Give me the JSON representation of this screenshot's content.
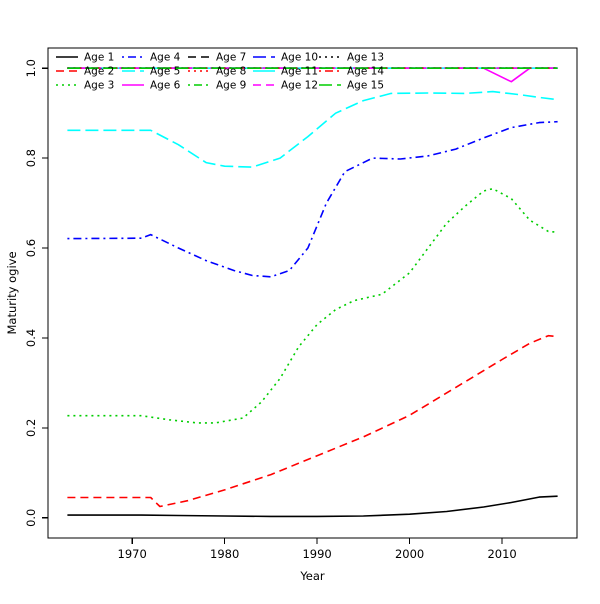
{
  "figure": {
    "background": "#ffffff",
    "title": ""
  },
  "chart_data": {
    "type": "line",
    "title": "",
    "xlabel": "Year",
    "ylabel": "Maturity ogive",
    "xlim": [
      1960.9,
      2018.1
    ],
    "ylim": [
      -0.045,
      1.045
    ],
    "x_ticks": [
      1970,
      1980,
      1990,
      2000,
      2010
    ],
    "y_ticks": [
      "0.0",
      "0.2",
      "0.4",
      "0.6",
      "0.8",
      "1.0"
    ],
    "grid": false,
    "legend_position": "top-inside",
    "legend_columns": 5,
    "legend_box": false,
    "series": [
      {
        "name": "Age 1",
        "color": "#000000",
        "linetype": "solid",
        "points": [
          [
            1963,
            0.006
          ],
          [
            1971,
            0.006
          ],
          [
            1975,
            0.005
          ],
          [
            1980,
            0.004
          ],
          [
            1985,
            0.003
          ],
          [
            1990,
            0.003
          ],
          [
            1995,
            0.004
          ],
          [
            2000,
            0.008
          ],
          [
            2004,
            0.014
          ],
          [
            2008,
            0.024
          ],
          [
            2011,
            0.034
          ],
          [
            2014,
            0.046
          ],
          [
            2016,
            0.048
          ]
        ]
      },
      {
        "name": "Age 2",
        "color": "#FF0000",
        "linetype": "dashed",
        "points": [
          [
            1963,
            0.045
          ],
          [
            1972,
            0.045
          ],
          [
            1973,
            0.025
          ],
          [
            1976,
            0.038
          ],
          [
            1980,
            0.062
          ],
          [
            1985,
            0.096
          ],
          [
            1990,
            0.138
          ],
          [
            1995,
            0.18
          ],
          [
            2000,
            0.228
          ],
          [
            2005,
            0.29
          ],
          [
            2010,
            0.352
          ],
          [
            2013,
            0.388
          ],
          [
            2015,
            0.405
          ],
          [
            2016,
            0.403
          ]
        ]
      },
      {
        "name": "Age 3",
        "color": "#00CD00",
        "linetype": "dotted",
        "points": [
          [
            1963,
            0.227
          ],
          [
            1971,
            0.227
          ],
          [
            1974,
            0.218
          ],
          [
            1977,
            0.211
          ],
          [
            1979,
            0.211
          ],
          [
            1982,
            0.222
          ],
          [
            1984,
            0.258
          ],
          [
            1986,
            0.31
          ],
          [
            1988,
            0.38
          ],
          [
            1990,
            0.43
          ],
          [
            1992,
            0.463
          ],
          [
            1994,
            0.483
          ],
          [
            1997,
            0.497
          ],
          [
            2000,
            0.545
          ],
          [
            2002,
            0.6
          ],
          [
            2004,
            0.655
          ],
          [
            2006,
            0.693
          ],
          [
            2008,
            0.727
          ],
          [
            2009,
            0.732
          ],
          [
            2011,
            0.71
          ],
          [
            2013,
            0.662
          ],
          [
            2015,
            0.637
          ],
          [
            2016,
            0.635
          ]
        ]
      },
      {
        "name": "Age 4",
        "color": "#0000FF",
        "linetype": "dotdash",
        "points": [
          [
            1963,
            0.621
          ],
          [
            1971,
            0.622
          ],
          [
            1972,
            0.63
          ],
          [
            1975,
            0.6
          ],
          [
            1978,
            0.572
          ],
          [
            1981,
            0.55
          ],
          [
            1983,
            0.539
          ],
          [
            1985,
            0.536
          ],
          [
            1987,
            0.55
          ],
          [
            1989,
            0.6
          ],
          [
            1991,
            0.7
          ],
          [
            1993,
            0.77
          ],
          [
            1996,
            0.8
          ],
          [
            1999,
            0.798
          ],
          [
            2002,
            0.805
          ],
          [
            2005,
            0.82
          ],
          [
            2008,
            0.845
          ],
          [
            2011,
            0.868
          ],
          [
            2014,
            0.879
          ],
          [
            2016,
            0.881
          ]
        ]
      },
      {
        "name": "Age 5",
        "color": "#00FFFF",
        "linetype": "longdash",
        "points": [
          [
            1963,
            0.862
          ],
          [
            1972,
            0.862
          ],
          [
            1975,
            0.83
          ],
          [
            1978,
            0.79
          ],
          [
            1980,
            0.782
          ],
          [
            1983,
            0.78
          ],
          [
            1986,
            0.8
          ],
          [
            1989,
            0.848
          ],
          [
            1992,
            0.9
          ],
          [
            1995,
            0.928
          ],
          [
            1998,
            0.944
          ],
          [
            2002,
            0.945
          ],
          [
            2006,
            0.944
          ],
          [
            2009,
            0.948
          ],
          [
            2012,
            0.941
          ],
          [
            2014,
            0.935
          ],
          [
            2016,
            0.93
          ]
        ]
      },
      {
        "name": "Age 6",
        "color": "#FF00FF",
        "linetype": "solid",
        "points": [
          [
            1963,
            1.0
          ],
          [
            2008,
            1.0
          ],
          [
            2011,
            0.97
          ],
          [
            2013,
            1.0
          ],
          [
            2016,
            1.0
          ]
        ]
      },
      {
        "name": "Age 7",
        "color": "#000000",
        "linetype": "dashed",
        "points": [
          [
            1963,
            1.0
          ],
          [
            2016,
            1.0
          ]
        ]
      },
      {
        "name": "Age 8",
        "color": "#FF0000",
        "linetype": "dotted",
        "points": [
          [
            1963,
            1.0
          ],
          [
            2016,
            1.0
          ]
        ]
      },
      {
        "name": "Age 9",
        "color": "#00CD00",
        "linetype": "dotdash",
        "points": [
          [
            1963,
            1.0
          ],
          [
            2016,
            1.0
          ]
        ]
      },
      {
        "name": "Age 10",
        "color": "#0000FF",
        "linetype": "longdash",
        "points": [
          [
            1963,
            1.0
          ],
          [
            2016,
            1.0
          ]
        ]
      },
      {
        "name": "Age 11",
        "color": "#00FFFF",
        "linetype": "solid",
        "points": [
          [
            1963,
            1.0
          ],
          [
            2016,
            1.0
          ]
        ]
      },
      {
        "name": "Age 12",
        "color": "#FF00FF",
        "linetype": "dashed",
        "points": [
          [
            1963,
            1.0
          ],
          [
            2016,
            1.0
          ]
        ]
      },
      {
        "name": "Age 13",
        "color": "#000000",
        "linetype": "dotted",
        "points": [
          [
            1963,
            1.0
          ],
          [
            2016,
            1.0
          ]
        ]
      },
      {
        "name": "Age 14",
        "color": "#FF0000",
        "linetype": "dotdash",
        "points": [
          [
            1963,
            1.0
          ],
          [
            2016,
            1.0
          ]
        ]
      },
      {
        "name": "Age 15",
        "color": "#00CD00",
        "linetype": "longdash",
        "points": [
          [
            1963,
            1.0
          ],
          [
            2016,
            1.0
          ]
        ]
      }
    ]
  }
}
